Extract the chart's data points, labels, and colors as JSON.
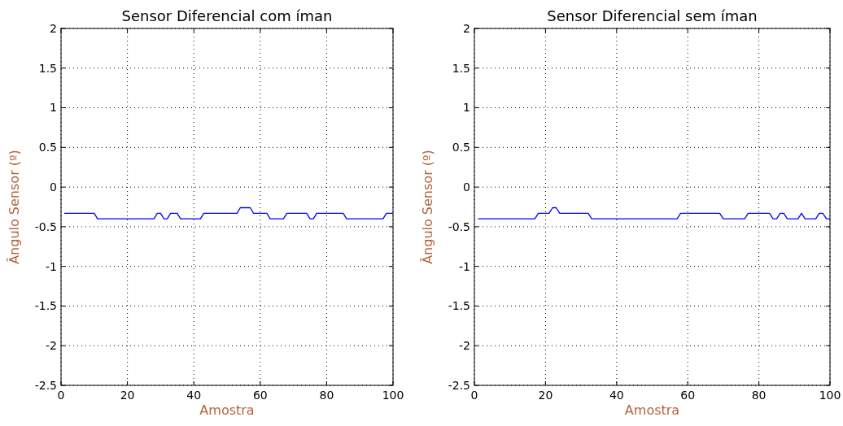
{
  "chart_data": [
    {
      "type": "line",
      "title": "Sensor Diferencial com íman",
      "xlabel": "Amostra",
      "ylabel": "Ângulo Sensor (º)",
      "xlim": [
        0,
        100
      ],
      "xticks": [
        0,
        20,
        40,
        60,
        80,
        100
      ],
      "ylim": [
        -2.5,
        2
      ],
      "yticks": [
        -2.5,
        -2,
        -1.5,
        -1,
        -0.5,
        0,
        0.5,
        1,
        1.5,
        2
      ],
      "grid": true,
      "line_style": "solid",
      "x": [
        1,
        2,
        3,
        4,
        5,
        6,
        7,
        8,
        9,
        10,
        11,
        12,
        13,
        14,
        15,
        16,
        17,
        18,
        19,
        20,
        21,
        22,
        23,
        24,
        25,
        26,
        27,
        28,
        29,
        30,
        31,
        32,
        33,
        34,
        35,
        36,
        37,
        38,
        39,
        40,
        41,
        42,
        43,
        44,
        45,
        46,
        47,
        48,
        49,
        50,
        51,
        52,
        53,
        54,
        55,
        56,
        57,
        58,
        59,
        60,
        61,
        62,
        63,
        64,
        65,
        66,
        67,
        68,
        69,
        70,
        71,
        72,
        73,
        74,
        75,
        76,
        77,
        78,
        79,
        80,
        81,
        82,
        83,
        84,
        85,
        86,
        87,
        88,
        89,
        90,
        91,
        92,
        93,
        94,
        95,
        96,
        97,
        98,
        99,
        100
      ],
      "series": [
        {
          "color": "#0000ff",
          "values": [
            -0.33,
            -0.33,
            -0.33,
            -0.33,
            -0.33,
            -0.33,
            -0.33,
            -0.33,
            -0.33,
            -0.33,
            -0.4,
            -0.4,
            -0.4,
            -0.4,
            -0.4,
            -0.4,
            -0.4,
            -0.4,
            -0.4,
            -0.4,
            -0.4,
            -0.4,
            -0.4,
            -0.4,
            -0.4,
            -0.4,
            -0.4,
            -0.4,
            -0.33,
            -0.33,
            -0.4,
            -0.4,
            -0.33,
            -0.33,
            -0.33,
            -0.4,
            -0.4,
            -0.4,
            -0.4,
            -0.4,
            -0.4,
            -0.4,
            -0.33,
            -0.33,
            -0.33,
            -0.33,
            -0.33,
            -0.33,
            -0.33,
            -0.33,
            -0.33,
            -0.33,
            -0.33,
            -0.26,
            -0.26,
            -0.26,
            -0.26,
            -0.33,
            -0.33,
            -0.33,
            -0.33,
            -0.33,
            -0.4,
            -0.4,
            -0.4,
            -0.4,
            -0.4,
            -0.33,
            -0.33,
            -0.33,
            -0.33,
            -0.33,
            -0.33,
            -0.33,
            -0.4,
            -0.4,
            -0.33,
            -0.33,
            -0.33,
            -0.33,
            -0.33,
            -0.33,
            -0.33,
            -0.33,
            -0.33,
            -0.4,
            -0.4,
            -0.4,
            -0.4,
            -0.4,
            -0.4,
            -0.4,
            -0.4,
            -0.4,
            -0.4,
            -0.4,
            -0.4,
            -0.33,
            -0.33,
            -0.33
          ]
        }
      ]
    },
    {
      "type": "line",
      "title": "Sensor Diferencial sem íman",
      "xlabel": "Amostra",
      "ylabel": "Ângulo Sensor (º)",
      "xlim": [
        0,
        100
      ],
      "xticks": [
        0,
        20,
        40,
        60,
        80,
        100
      ],
      "ylim": [
        -2.5,
        2
      ],
      "yticks": [
        -2.5,
        -2,
        -1.5,
        -1,
        -0.5,
        0,
        0.5,
        1,
        1.5,
        2
      ],
      "grid": true,
      "line_style": "solid",
      "x": [
        1,
        2,
        3,
        4,
        5,
        6,
        7,
        8,
        9,
        10,
        11,
        12,
        13,
        14,
        15,
        16,
        17,
        18,
        19,
        20,
        21,
        22,
        23,
        24,
        25,
        26,
        27,
        28,
        29,
        30,
        31,
        32,
        33,
        34,
        35,
        36,
        37,
        38,
        39,
        40,
        41,
        42,
        43,
        44,
        45,
        46,
        47,
        48,
        49,
        50,
        51,
        52,
        53,
        54,
        55,
        56,
        57,
        58,
        59,
        60,
        61,
        62,
        63,
        64,
        65,
        66,
        67,
        68,
        69,
        70,
        71,
        72,
        73,
        74,
        75,
        76,
        77,
        78,
        79,
        80,
        81,
        82,
        83,
        84,
        85,
        86,
        87,
        88,
        89,
        90,
        91,
        92,
        93,
        94,
        95,
        96,
        97,
        98,
        99,
        100
      ],
      "series": [
        {
          "color": "#0000ff",
          "values": [
            -0.4,
            -0.4,
            -0.4,
            -0.4,
            -0.4,
            -0.4,
            -0.4,
            -0.4,
            -0.4,
            -0.4,
            -0.4,
            -0.4,
            -0.4,
            -0.4,
            -0.4,
            -0.4,
            -0.4,
            -0.33,
            -0.33,
            -0.33,
            -0.33,
            -0.26,
            -0.26,
            -0.33,
            -0.33,
            -0.33,
            -0.33,
            -0.33,
            -0.33,
            -0.33,
            -0.33,
            -0.33,
            -0.4,
            -0.4,
            -0.4,
            -0.4,
            -0.4,
            -0.4,
            -0.4,
            -0.4,
            -0.4,
            -0.4,
            -0.4,
            -0.4,
            -0.4,
            -0.4,
            -0.4,
            -0.4,
            -0.4,
            -0.4,
            -0.4,
            -0.4,
            -0.4,
            -0.4,
            -0.4,
            -0.4,
            -0.4,
            -0.33,
            -0.33,
            -0.33,
            -0.33,
            -0.33,
            -0.33,
            -0.33,
            -0.33,
            -0.33,
            -0.33,
            -0.33,
            -0.33,
            -0.4,
            -0.4,
            -0.4,
            -0.4,
            -0.4,
            -0.4,
            -0.4,
            -0.33,
            -0.33,
            -0.33,
            -0.33,
            -0.33,
            -0.33,
            -0.33,
            -0.4,
            -0.4,
            -0.33,
            -0.33,
            -0.4,
            -0.4,
            -0.4,
            -0.4,
            -0.33,
            -0.4,
            -0.4,
            -0.4,
            -0.4,
            -0.33,
            -0.33,
            -0.4,
            -0.4
          ]
        }
      ]
    }
  ]
}
